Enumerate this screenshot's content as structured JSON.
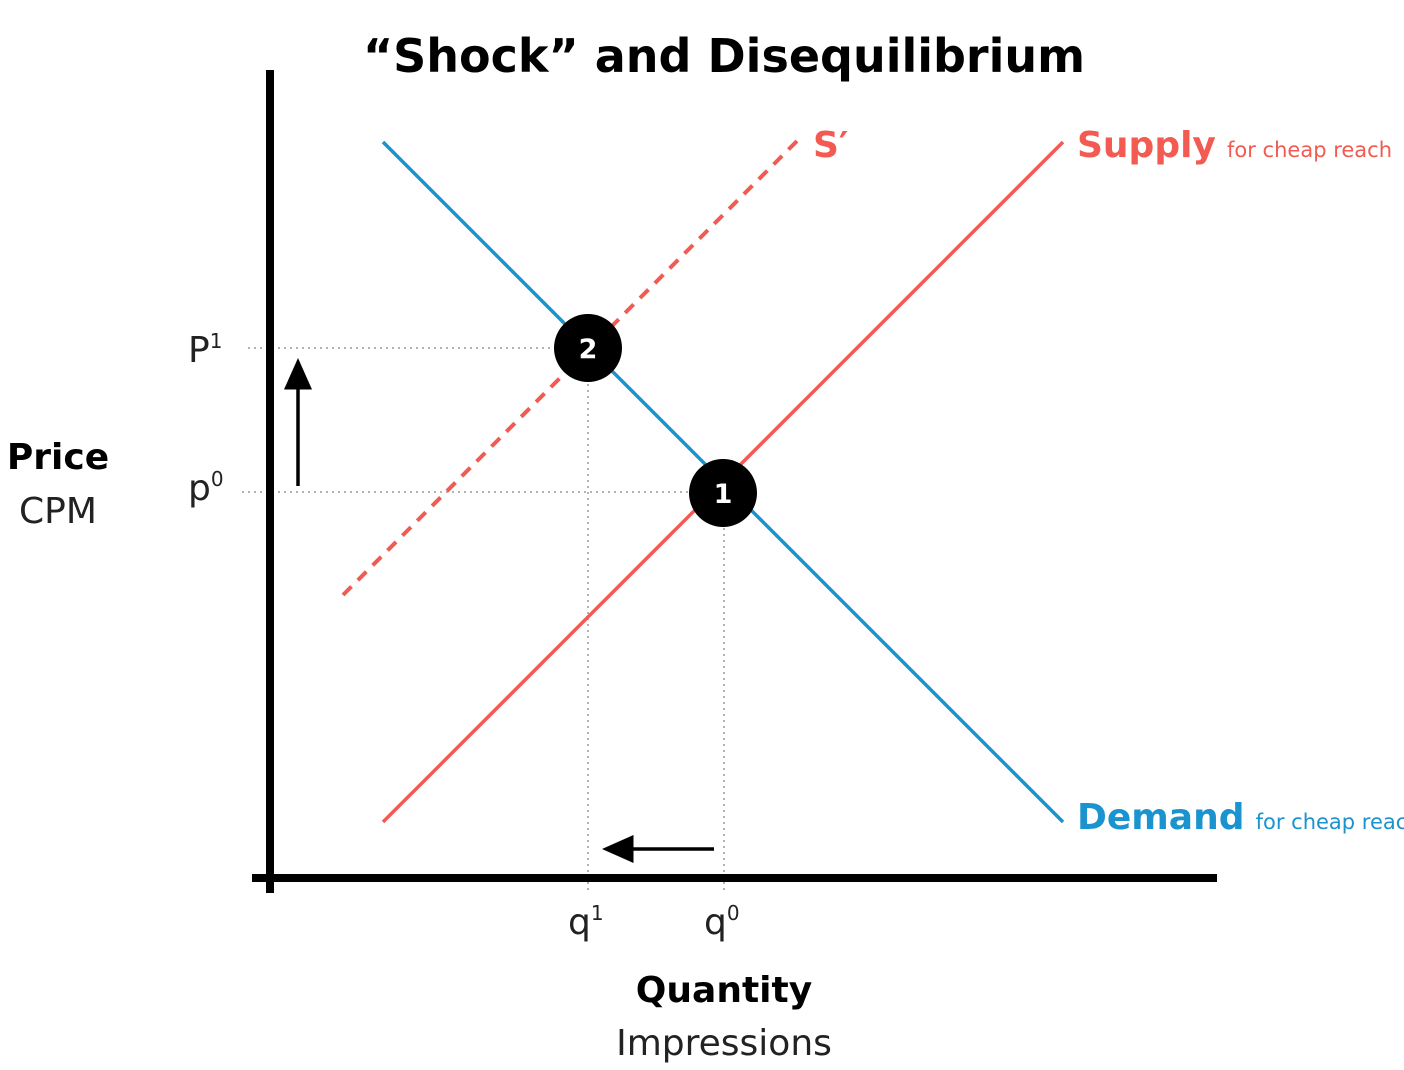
{
  "title": "“Shock” and  Disequilibrium",
  "colors": {
    "supply": "#f25a52",
    "demand": "#1a93cf",
    "axis": "#000000",
    "guide": "#9a9a9a"
  },
  "y_axis": {
    "main": "Price",
    "sub": "CPM"
  },
  "x_axis": {
    "main": "Quantity",
    "sub": "Impressions"
  },
  "ticks": {
    "p1": {
      "base": "P",
      "sup": "1"
    },
    "p0": {
      "base": "p",
      "sup": "0"
    },
    "q1": {
      "base": "q",
      "sup": "1"
    },
    "q0": {
      "base": "q",
      "sup": "0"
    }
  },
  "curves": {
    "supply": {
      "label": "Supply",
      "note": "for cheap reach",
      "style": "solid"
    },
    "supply_shifted": {
      "label": "S′",
      "style": "dashed"
    },
    "demand": {
      "label": "Demand",
      "note": "for cheap reach",
      "style": "solid"
    }
  },
  "points": [
    {
      "id": "equilibrium-1",
      "label": "1"
    },
    {
      "id": "equilibrium-2",
      "label": "2"
    }
  ],
  "arrows": [
    {
      "id": "price-up-arrow",
      "direction": "up"
    },
    {
      "id": "quantity-left-arrow",
      "direction": "left"
    }
  ]
}
